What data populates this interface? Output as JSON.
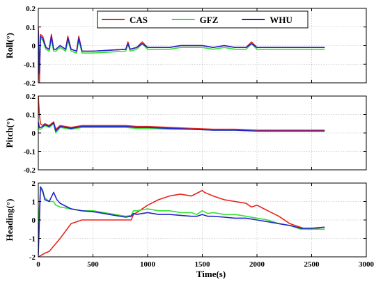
{
  "chart_data": {
    "type": "line",
    "xlabel": "Time(s)",
    "xlim": [
      0,
      3000
    ],
    "xticks": [
      0,
      500,
      1000,
      1500,
      2000,
      2500,
      3000
    ],
    "legend": {
      "placement": "top-center",
      "entries": [
        "CAS",
        "GFZ",
        "WHU"
      ]
    },
    "colors": {
      "CAS": "#e8231c",
      "GFZ": "#33e233",
      "WHU": "#2222cc"
    },
    "grid": true,
    "panels": [
      {
        "ylabel": "Roll(°)",
        "ylim": [
          -0.2,
          0.2
        ],
        "yticks": [
          -0.2,
          -0.1,
          0,
          0.1,
          0.2
        ],
        "yticklabels": [
          "-0.2",
          "-0.1",
          "0",
          "0.1",
          "0.2"
        ],
        "series": [
          {
            "name": "CAS",
            "x": [
              0,
              10,
              20,
              40,
              70,
              100,
              120,
              140,
              160,
              200,
              250,
              270,
              300,
              350,
              370,
              400,
              500,
              800,
              820,
              840,
              900,
              950,
              1000,
              1100,
              1200,
              1300,
              1400,
              1500,
              1600,
              1700,
              1800,
              1900,
              1950,
              2000,
              2100,
              2200,
              2300,
              2400,
              2500,
              2600,
              2620
            ],
            "y": [
              0.1,
              -0.2,
              0.06,
              0.05,
              -0.01,
              -0.02,
              0.06,
              -0.02,
              -0.02,
              0.0,
              -0.02,
              0.05,
              -0.02,
              -0.03,
              0.05,
              -0.03,
              -0.03,
              -0.02,
              0.02,
              -0.02,
              -0.01,
              0.02,
              -0.01,
              -0.01,
              -0.01,
              0.0,
              0.0,
              0.0,
              -0.01,
              0.0,
              -0.01,
              -0.01,
              0.02,
              -0.01,
              -0.01,
              -0.01,
              -0.01,
              -0.01,
              -0.01,
              -0.01,
              -0.01
            ]
          },
          {
            "name": "GFZ",
            "x": [
              0,
              10,
              20,
              40,
              70,
              100,
              120,
              140,
              160,
              200,
              250,
              270,
              300,
              350,
              370,
              400,
              500,
              800,
              820,
              840,
              900,
              950,
              1000,
              1100,
              1200,
              1300,
              1400,
              1500,
              1600,
              1700,
              1800,
              1900,
              1950,
              2000,
              2100,
              2200,
              2300,
              2400,
              2500,
              2600,
              2620
            ],
            "y": [
              0.05,
              -0.12,
              0.04,
              0.03,
              -0.02,
              -0.03,
              0.04,
              -0.03,
              -0.03,
              -0.01,
              -0.03,
              0.03,
              -0.03,
              -0.04,
              0.03,
              -0.04,
              -0.04,
              -0.03,
              0.01,
              -0.03,
              -0.02,
              0.01,
              -0.02,
              -0.02,
              -0.02,
              -0.01,
              -0.01,
              -0.01,
              -0.02,
              -0.01,
              -0.02,
              -0.02,
              0.01,
              -0.02,
              -0.02,
              -0.02,
              -0.02,
              -0.02,
              -0.02,
              -0.02,
              -0.02
            ]
          },
          {
            "name": "WHU",
            "x": [
              0,
              10,
              20,
              40,
              70,
              100,
              120,
              140,
              160,
              200,
              250,
              270,
              300,
              350,
              370,
              400,
              500,
              800,
              820,
              840,
              900,
              950,
              1000,
              1100,
              1200,
              1300,
              1400,
              1500,
              1600,
              1700,
              1800,
              1900,
              1950,
              2000,
              2100,
              2200,
              2300,
              2400,
              2500,
              2600,
              2620
            ],
            "y": [
              0.08,
              -0.15,
              0.05,
              0.04,
              -0.01,
              -0.02,
              0.05,
              -0.02,
              -0.02,
              0.0,
              -0.02,
              0.04,
              -0.02,
              -0.03,
              0.04,
              -0.03,
              -0.03,
              -0.02,
              0.01,
              -0.02,
              -0.01,
              0.01,
              -0.01,
              -0.01,
              -0.01,
              0.0,
              0.0,
              0.0,
              -0.01,
              0.0,
              -0.01,
              -0.01,
              0.01,
              -0.01,
              -0.01,
              -0.01,
              -0.01,
              -0.01,
              -0.01,
              -0.01,
              -0.01
            ]
          }
        ]
      },
      {
        "ylabel": "Pitch(°)",
        "ylim": [
          -0.2,
          0.2
        ],
        "yticks": [
          -0.2,
          -0.1,
          0,
          0.1,
          0.2
        ],
        "yticklabels": [
          "-0.2",
          "-0.1",
          "0",
          "0.1",
          "0.2"
        ],
        "series": [
          {
            "name": "CAS",
            "x": [
              0,
              10,
              20,
              40,
              60,
              100,
              140,
              160,
              200,
              300,
              400,
              500,
              800,
              900,
              1000,
              1200,
              1400,
              1600,
              1800,
              2000,
              2200,
              2400,
              2600,
              2620
            ],
            "y": [
              0.2,
              0.1,
              0.05,
              0.04,
              0.05,
              0.04,
              0.06,
              0.02,
              0.04,
              0.03,
              0.04,
              0.04,
              0.04,
              0.035,
              0.035,
              0.03,
              0.025,
              0.02,
              0.02,
              0.015,
              0.015,
              0.015,
              0.015,
              0.015
            ]
          },
          {
            "name": "GFZ",
            "x": [
              0,
              10,
              20,
              40,
              60,
              100,
              140,
              160,
              200,
              300,
              400,
              500,
              800,
              900,
              1000,
              1200,
              1400,
              1600,
              1800,
              2000,
              2200,
              2400,
              2600,
              2620
            ],
            "y": [
              0.05,
              0.02,
              0.02,
              0.03,
              0.04,
              0.03,
              0.05,
              0.0,
              0.03,
              0.02,
              0.03,
              0.03,
              0.03,
              0.025,
              0.025,
              0.02,
              0.02,
              0.015,
              0.015,
              0.01,
              0.01,
              0.01,
              0.01,
              0.01
            ]
          },
          {
            "name": "WHU",
            "x": [
              0,
              10,
              20,
              40,
              60,
              100,
              140,
              160,
              200,
              300,
              400,
              500,
              800,
              900,
              1000,
              1200,
              1400,
              1600,
              1800,
              2000,
              2200,
              2400,
              2600,
              2620
            ],
            "y": [
              0.06,
              0.03,
              0.03,
              0.035,
              0.045,
              0.035,
              0.055,
              0.01,
              0.035,
              0.025,
              0.035,
              0.035,
              0.035,
              0.03,
              0.03,
              0.025,
              0.02,
              0.015,
              0.015,
              0.01,
              0.01,
              0.01,
              0.01,
              0.01
            ]
          }
        ]
      },
      {
        "ylabel": "Heading(°)",
        "ylim": [
          -2,
          2
        ],
        "yticks": [
          -2,
          -1,
          0,
          1,
          2
        ],
        "yticklabels": [
          "-2",
          "-1",
          "0",
          "1",
          "2"
        ],
        "series": [
          {
            "name": "CAS",
            "x": [
              0,
              30,
              60,
              100,
              200,
              300,
              400,
              500,
              600,
              700,
              800,
              850,
              870,
              900,
              950,
              1000,
              1100,
              1200,
              1300,
              1400,
              1500,
              1520,
              1600,
              1700,
              1800,
              1900,
              1950,
              2000,
              2100,
              2200,
              2300,
              2400,
              2450,
              2500,
              2600,
              2620
            ],
            "y": [
              -2,
              -1.9,
              -1.8,
              -1.7,
              -1.0,
              -0.2,
              0.0,
              0.0,
              0.0,
              0.0,
              0.0,
              0.0,
              0.3,
              0.4,
              0.6,
              0.8,
              1.1,
              1.3,
              1.4,
              1.3,
              1.6,
              1.5,
              1.3,
              1.1,
              1.0,
              0.9,
              0.7,
              0.8,
              0.5,
              0.2,
              -0.2,
              -0.4,
              -0.5,
              -0.5,
              -0.4,
              -0.4
            ]
          },
          {
            "name": "GFZ",
            "x": [
              0,
              20,
              40,
              60,
              100,
              140,
              160,
              200,
              300,
              400,
              500,
              600,
              700,
              800,
              850,
              870,
              900,
              1000,
              1100,
              1200,
              1300,
              1400,
              1450,
              1500,
              1550,
              1600,
              1700,
              1800,
              1900,
              2000,
              2100,
              2200,
              2300,
              2400,
              2500,
              2600,
              2620
            ],
            "y": [
              -0.5,
              1.7,
              1.5,
              1.2,
              1.0,
              1.0,
              0.8,
              0.7,
              0.6,
              0.5,
              0.5,
              0.4,
              0.3,
              0.2,
              0.25,
              0.5,
              0.5,
              0.6,
              0.5,
              0.5,
              0.4,
              0.4,
              0.3,
              0.5,
              0.35,
              0.4,
              0.3,
              0.3,
              0.2,
              0.1,
              0.0,
              -0.2,
              -0.3,
              -0.5,
              -0.5,
              -0.5,
              -0.5
            ]
          },
          {
            "name": "WHU",
            "x": [
              0,
              20,
              40,
              60,
              100,
              140,
              170,
              200,
              300,
              400,
              500,
              600,
              700,
              800,
              850,
              870,
              900,
              1000,
              1100,
              1200,
              1300,
              1400,
              1450,
              1500,
              1550,
              1600,
              1700,
              1800,
              1900,
              2000,
              2100,
              2200,
              2300,
              2400,
              2500,
              2600,
              2620
            ],
            "y": [
              -1.9,
              1.8,
              1.6,
              1.1,
              1.0,
              1.5,
              1.1,
              0.9,
              0.6,
              0.5,
              0.45,
              0.35,
              0.25,
              0.15,
              0.2,
              0.35,
              0.3,
              0.4,
              0.3,
              0.3,
              0.25,
              0.2,
              0.2,
              0.3,
              0.2,
              0.2,
              0.15,
              0.1,
              0.1,
              0.0,
              -0.1,
              -0.2,
              -0.3,
              -0.45,
              -0.45,
              -0.4,
              -0.4
            ]
          }
        ]
      }
    ]
  }
}
